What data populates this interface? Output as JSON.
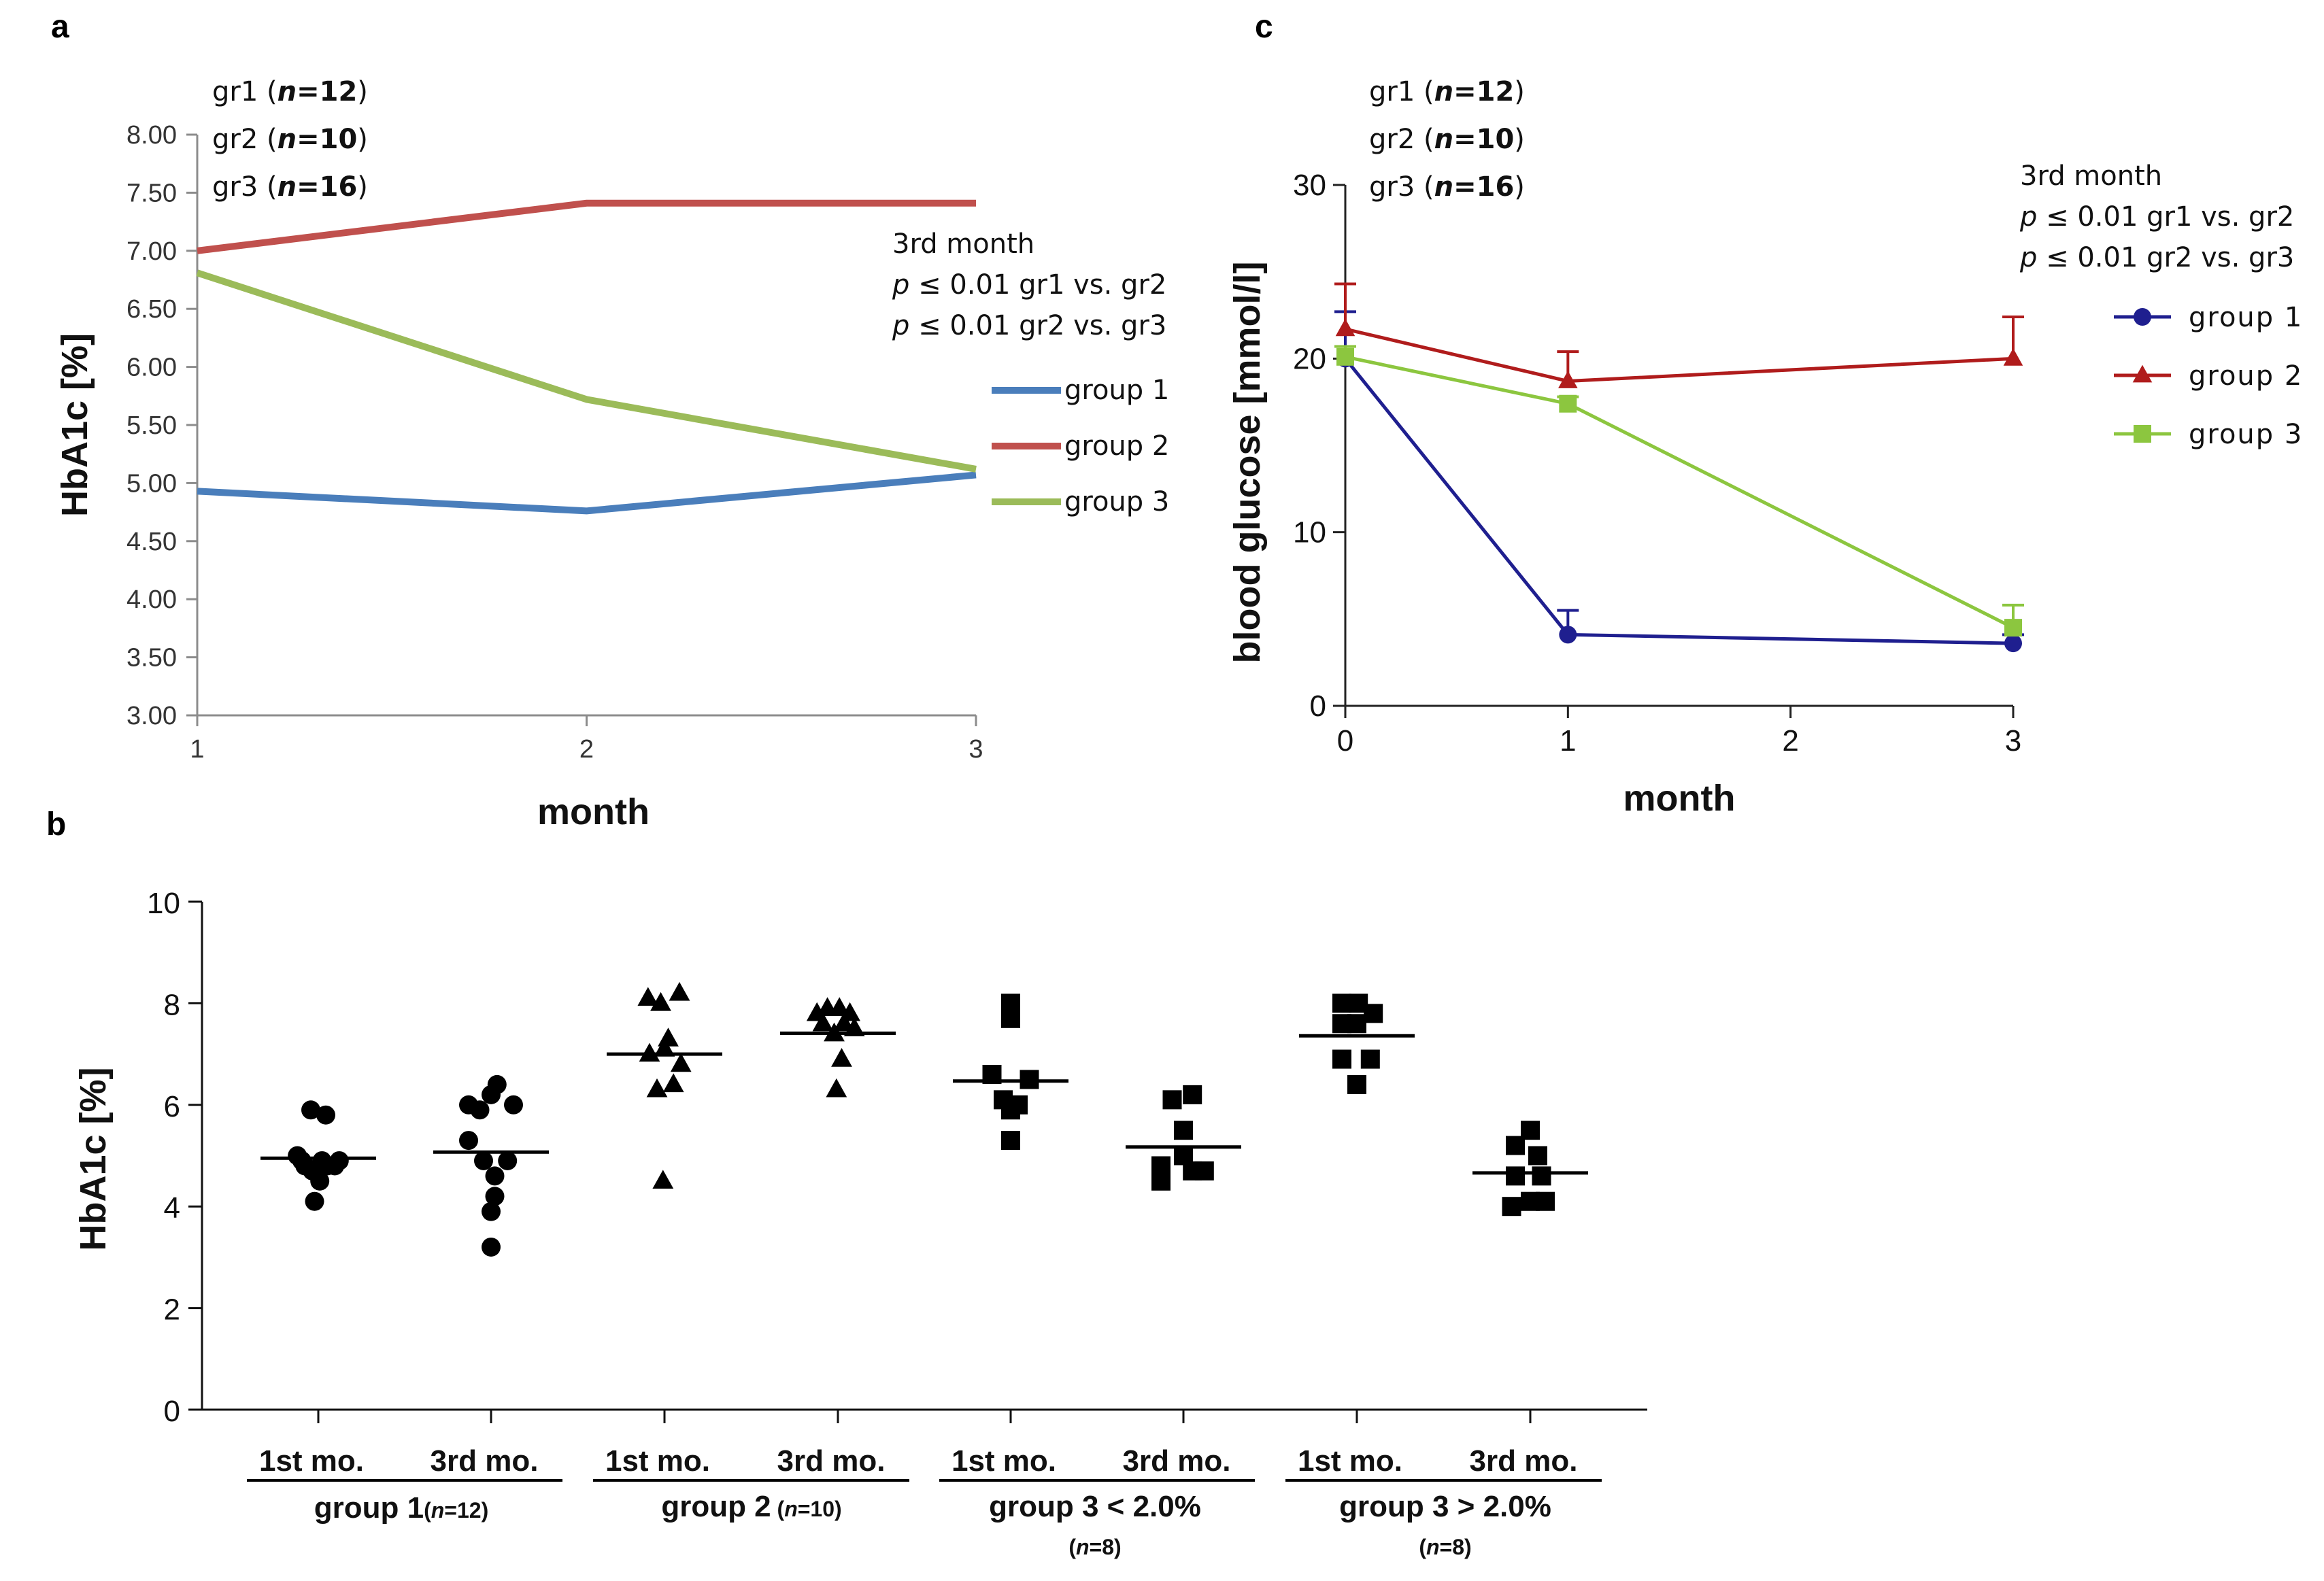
{
  "chart_data": [
    {
      "panel": "a",
      "type": "line",
      "xlabel": "month",
      "ylabel": "HbA1c [%]",
      "x": [
        1,
        2,
        3
      ],
      "ylim": [
        3.0,
        8.0
      ],
      "yticks": [
        "3.00",
        "3.50",
        "4.00",
        "4.50",
        "5.00",
        "5.50",
        "6.00",
        "6.50",
        "7.00",
        "7.50",
        "8.00"
      ],
      "xticks": [
        "1",
        "2",
        "3"
      ],
      "series": [
        {
          "name": "group 1",
          "color": "#4a7ebb",
          "values": [
            4.93,
            4.76,
            5.07
          ]
        },
        {
          "name": "group 2",
          "color": "#c0504d",
          "values": [
            7.0,
            7.41,
            7.41
          ]
        },
        {
          "name": "group 3",
          "color": "#9bbb59",
          "values": [
            6.81,
            5.72,
            5.12
          ]
        }
      ],
      "n_labels": [
        {
          "pre": "gr1 (",
          "n": "n",
          "eq": "=12",
          "post": ")"
        },
        {
          "pre": "gr2 (",
          "n": "n",
          "eq": "=10",
          "post": ")"
        },
        {
          "pre": "gr3 (",
          "n": "n",
          "eq": "=16",
          "post": ")"
        }
      ],
      "stats": {
        "title": "3rd month",
        "lines": [
          {
            "p": "p",
            "rest": " ≤ 0.01 gr1 vs. gr2"
          },
          {
            "p": "p",
            "rest": " ≤ 0.01 gr2 vs. gr3"
          }
        ]
      }
    },
    {
      "panel": "c",
      "type": "line",
      "xlabel": "month",
      "ylabel": "blood glucose [mmol/l]",
      "ylim": [
        0,
        30
      ],
      "xlim": [
        0,
        3
      ],
      "yticks": [
        "0",
        "10",
        "20",
        "30"
      ],
      "xticks": [
        "0",
        "1",
        "2",
        "3"
      ],
      "series": [
        {
          "name": "group 1",
          "color": "#1f1f8f",
          "marker": "circle",
          "x": [
            0,
            1,
            3
          ],
          "values": [
            20.0,
            4.1,
            3.6
          ],
          "err": [
            2.7,
            1.4,
            0.5
          ]
        },
        {
          "name": "group 2",
          "color": "#b01c1c",
          "marker": "triangle",
          "x": [
            0,
            1,
            3
          ],
          "values": [
            21.7,
            18.7,
            20.0
          ],
          "err": [
            2.6,
            1.7,
            2.4
          ]
        },
        {
          "name": "group 3",
          "color": "#8cc63f",
          "marker": "square",
          "x": [
            0,
            1,
            3
          ],
          "values": [
            20.1,
            17.4,
            4.5
          ],
          "err": [
            0.6,
            0.4,
            1.3
          ]
        }
      ],
      "n_labels": [
        {
          "pre": "gr1 (",
          "n": "n",
          "eq": "=12",
          "post": ")"
        },
        {
          "pre": "gr2 (",
          "n": "n",
          "eq": "=10",
          "post": ")"
        },
        {
          "pre": "gr3 (",
          "n": "n",
          "eq": "=16",
          "post": ")"
        }
      ],
      "stats": {
        "title": "3rd month",
        "lines": [
          {
            "p": "p",
            "rest": " ≤ 0.01 gr1 vs. gr2"
          },
          {
            "p": "p",
            "rest": " ≤ 0.01 gr2 vs.  gr3"
          }
        ]
      }
    },
    {
      "panel": "b",
      "type": "scatter",
      "ylabel": "HbA1c [%]",
      "ylim": [
        0,
        10
      ],
      "yticks": [
        "0",
        "2",
        "4",
        "6",
        "8",
        "10"
      ],
      "categories": [
        "1st mo.",
        "3rd mo.",
        "1st mo.",
        "3rd mo.",
        "1st mo.",
        "3rd mo.",
        "1st mo.",
        "3rd mo."
      ],
      "groups": [
        {
          "label": "group 1",
          "n_pre": "(",
          "n": "n",
          "n_eq": "=12)"
        },
        {
          "label": "group 2",
          "n_pre": " (",
          "n": "n",
          "n_eq": "=10)"
        },
        {
          "label": "group 3 < 2.0%",
          "n_pre": "(",
          "n": "n",
          "n_eq": "=8)"
        },
        {
          "label": "group 3 > 2.0%",
          "n_pre": "(",
          "n": "n",
          "n_eq": "=8)"
        }
      ],
      "series": [
        {
          "name": "group 1 1st mo.",
          "marker": "circle",
          "mean": 4.95,
          "points": [
            [
              -0.28,
              5.0
            ],
            [
              -0.18,
              4.8
            ],
            [
              -0.08,
              4.7
            ],
            [
              0.02,
              4.5
            ],
            [
              0.12,
              4.8
            ],
            [
              0.22,
              4.8
            ],
            [
              -0.1,
              5.9
            ],
            [
              0.1,
              5.8
            ],
            [
              -0.22,
              4.9
            ],
            [
              0.28,
              4.9
            ],
            [
              -0.05,
              4.1
            ],
            [
              0.05,
              4.9
            ]
          ]
        },
        {
          "name": "group 1 3rd mo.",
          "marker": "circle",
          "mean": 5.07,
          "points": [
            [
              -0.3,
              6.0
            ],
            [
              -0.3,
              5.3
            ],
            [
              -0.15,
              5.9
            ],
            [
              0.0,
              6.2
            ],
            [
              0.08,
              6.4
            ],
            [
              0.3,
              6.0
            ],
            [
              -0.1,
              4.9
            ],
            [
              0.22,
              4.9
            ],
            [
              0.05,
              4.2
            ],
            [
              0.0,
              3.9
            ],
            [
              0.0,
              3.2
            ],
            [
              0.05,
              4.6
            ]
          ]
        },
        {
          "name": "group 2 1st mo.",
          "marker": "triangle",
          "mean": 7.0,
          "points": [
            [
              -0.22,
              8.1
            ],
            [
              -0.05,
              8.0
            ],
            [
              0.2,
              8.2
            ],
            [
              -0.2,
              7.0
            ],
            [
              0.05,
              7.3
            ],
            [
              0.22,
              6.8
            ],
            [
              -0.1,
              6.3
            ],
            [
              0.12,
              6.4
            ],
            [
              -0.02,
              4.5
            ],
            [
              0.0,
              7.1
            ]
          ]
        },
        {
          "name": "group 2 3rd mo.",
          "marker": "triangle",
          "mean": 7.41,
          "points": [
            [
              -0.28,
              7.8
            ],
            [
              -0.14,
              7.9
            ],
            [
              0.02,
              7.9
            ],
            [
              0.16,
              7.8
            ],
            [
              -0.2,
              7.6
            ],
            [
              0.08,
              7.6
            ],
            [
              0.22,
              7.5
            ],
            [
              -0.05,
              7.4
            ],
            [
              0.05,
              6.9
            ],
            [
              -0.02,
              6.3
            ]
          ]
        },
        {
          "name": "group 3 < 2.0% 1st mo.",
          "marker": "square",
          "mean": 6.47,
          "points": [
            [
              0.0,
              8.0
            ],
            [
              0.0,
              7.7
            ],
            [
              -0.25,
              6.6
            ],
            [
              0.25,
              6.5
            ],
            [
              -0.1,
              6.1
            ],
            [
              0.1,
              6.0
            ],
            [
              0.0,
              5.9
            ],
            [
              0.0,
              5.3
            ]
          ]
        },
        {
          "name": "group 3 < 2.0% 3rd mo.",
          "marker": "square",
          "mean": 5.17,
          "points": [
            [
              -0.15,
              6.1
            ],
            [
              0.12,
              6.2
            ],
            [
              0.0,
              5.5
            ],
            [
              -0.3,
              4.8
            ],
            [
              0.0,
              5.0
            ],
            [
              0.28,
              4.7
            ],
            [
              -0.3,
              4.5
            ],
            [
              0.12,
              4.7
            ]
          ]
        },
        {
          "name": "group 3 > 2.0% 1st mo.",
          "marker": "square",
          "mean": 7.36,
          "points": [
            [
              -0.2,
              8.0
            ],
            [
              0.02,
              8.0
            ],
            [
              0.22,
              7.8
            ],
            [
              -0.2,
              7.6
            ],
            [
              0.0,
              7.6
            ],
            [
              -0.2,
              6.9
            ],
            [
              0.18,
              6.9
            ],
            [
              0.0,
              6.4
            ]
          ]
        },
        {
          "name": "group 3 > 2.0% 3rd mo.",
          "marker": "square",
          "mean": 4.66,
          "points": [
            [
              0.0,
              5.5
            ],
            [
              -0.2,
              5.2
            ],
            [
              0.1,
              5.0
            ],
            [
              -0.2,
              4.6
            ],
            [
              0.15,
              4.6
            ],
            [
              -0.25,
              4.0
            ],
            [
              0.0,
              4.1
            ],
            [
              0.2,
              4.1
            ]
          ]
        }
      ]
    }
  ]
}
